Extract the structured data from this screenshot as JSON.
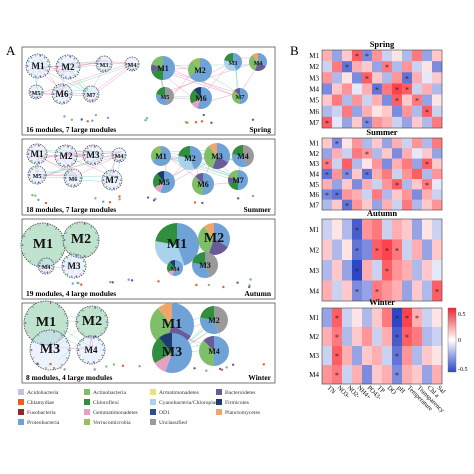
{
  "panels": {
    "a": "A",
    "b": "B"
  },
  "colors": {
    "Acidobacteria": "#c9bfe0",
    "Actinobacteria": "#7fbf6a",
    "Armatimonadetes": "#e8e27a",
    "Bacteroidetes": "#6a5a9a",
    "Chlamydiae": "#e4602a",
    "Chloroflexi": "#2f8f3f",
    "Cyanobacteria/Chloroplast": "#a9d2ec",
    "Firmicutes": "#1f3b6e",
    "Fusobacteria": "#8b2a2a",
    "Gemmatimonadetes": "#e6a0c4",
    "OD1": "#2c4d8e",
    "Planctomycetes": "#f0a66a",
    "Proteobacteria": "#6fa2d6",
    "Verrucomicrobia": "#9bbd5a",
    "Unclassified": "#9a9a9a",
    "edge_pos": "#e85a9a",
    "edge_neg": "#4fbf9f"
  },
  "networks": [
    {
      "caption": "16 modules, 7 large modules",
      "season": "Spring",
      "modules": [
        "M1",
        "M2",
        "M3",
        "M4",
        "M5",
        "M6",
        "M7"
      ]
    },
    {
      "caption": "18 modules, 7 large modules",
      "season": "Summer",
      "modules": [
        "M1",
        "M2",
        "M3",
        "M4",
        "M5",
        "M6",
        "M7"
      ]
    },
    {
      "caption": "19 modules, 4 large modules",
      "season": "Autumn",
      "modules": [
        "M1",
        "M2",
        "M3",
        "M4"
      ]
    },
    {
      "caption": "8 modules, 4 large modules",
      "season": "Winter",
      "modules": [
        "M1",
        "M2",
        "M3",
        "M4"
      ]
    }
  ],
  "legend": [
    "Acidobacteria",
    "Actinobacteria",
    "Armatimonadetes",
    "Bacteroidetes",
    "Chlamydiae",
    "Chloroflexi",
    "Cyanobacteria/Chloroplast",
    "Firmicutes",
    "Fusobacteria",
    "Gemmatimonadetes",
    "OD1",
    "Planctomycetes",
    "Proteobacteria",
    "Verrucomicrobia",
    "Unclassified"
  ],
  "heatmap": {
    "x_labels": [
      "TN",
      "NO3-",
      "NO2-",
      "NH4+",
      "PO43-",
      "TP",
      "DO",
      "pH",
      "Temperature",
      "Transparency",
      "Chl a",
      "Sal"
    ],
    "colorbar": {
      "max_label": "0.5",
      "zero_label": "0",
      "min_label": "-0.5"
    },
    "seasons": [
      {
        "name": "Spring",
        "rows": [
          "M1",
          "M2",
          "M3",
          "M4",
          "M5",
          "M6",
          "M7"
        ],
        "values": [
          [
            0.3,
            -0.4,
            0.2,
            0.6,
            -0.5,
            0.4,
            -0.2,
            0.1,
            -0.3,
            0.5,
            -0.4,
            0.2
          ],
          [
            -0.2,
            0.5,
            -0.6,
            0.3,
            0.2,
            -0.4,
            0.5,
            -0.3,
            0.4,
            -0.2,
            0.1,
            -0.5
          ],
          [
            0.4,
            -0.3,
            0.1,
            -0.5,
            0.6,
            0.2,
            -0.3,
            0.4,
            -0.6,
            0.3,
            -0.1,
            0.2
          ],
          [
            -0.5,
            0.2,
            0.4,
            -0.1,
            0.3,
            -0.6,
            0.5,
            0.7,
            0.6,
            -0.2,
            0.3,
            -0.3
          ],
          [
            0.2,
            0.5,
            -0.3,
            0.4,
            -0.2,
            0.3,
            -0.5,
            0.6,
            0.2,
            0.5,
            -0.4,
            0.1
          ],
          [
            -0.3,
            -0.2,
            0.5,
            -0.4,
            0.3,
            0.1,
            0.2,
            -0.5,
            0.4,
            -0.3,
            0.6,
            -0.2
          ],
          [
            0.6,
            -0.1,
            -0.4,
            0.2,
            -0.5,
            0.4,
            0.3,
            -0.2,
            -0.4,
            0.2,
            -0.3,
            0.5
          ]
        ],
        "stars": [
          [
            0,
            3
          ],
          [
            0,
            4
          ],
          [
            1,
            2
          ],
          [
            1,
            6
          ],
          [
            2,
            4
          ],
          [
            2,
            8
          ],
          [
            3,
            5
          ],
          [
            3,
            7
          ],
          [
            3,
            8
          ],
          [
            4,
            7
          ],
          [
            4,
            9
          ],
          [
            5,
            10
          ],
          [
            6,
            0
          ],
          [
            6,
            4
          ]
        ]
      },
      {
        "name": "Summer",
        "rows": [
          "M1",
          "M2",
          "M3",
          "M4",
          "M5",
          "M6",
          "M7"
        ],
        "values": [
          [
            0.2,
            -0.5,
            0.1,
            0.4,
            -0.3,
            0.2,
            -0.4,
            0.3,
            -0.2,
            0.4,
            -0.3,
            0.5
          ],
          [
            -0.4,
            0.3,
            -0.2,
            0.5,
            0.4,
            -0.3,
            0.2,
            -0.5,
            0.3,
            -0.1,
            0.2,
            -0.4
          ],
          [
            0.5,
            -0.2,
            0.6,
            -0.3,
            0.1,
            0.4,
            -0.5,
            0.3,
            0.5,
            -0.4,
            0.6,
            0.2
          ],
          [
            -0.6,
            0.4,
            -0.5,
            0.2,
            -0.6,
            0.3,
            0.5,
            -0.2,
            0.4,
            0.6,
            -0.3,
            0.4
          ],
          [
            0.3,
            -0.4,
            0.2,
            -0.5,
            0.3,
            -0.2,
            0.4,
            0.6,
            -0.3,
            0.2,
            0.5,
            -0.1
          ],
          [
            -0.5,
            -0.6,
            0.4,
            0.3,
            -0.2,
            0.5,
            -0.3,
            0.2,
            0.4,
            -0.5,
            0.3,
            -0.2
          ],
          [
            -0.3,
            0.2,
            -0.6,
            0.4,
            0.2,
            -0.4,
            0.3,
            -0.2,
            0.5,
            -0.3,
            0.2,
            0.4
          ]
        ],
        "stars": [
          [
            0,
            1
          ],
          [
            1,
            4
          ],
          [
            2,
            0
          ],
          [
            2,
            10
          ],
          [
            3,
            0
          ],
          [
            3,
            2
          ],
          [
            3,
            4
          ],
          [
            4,
            7
          ],
          [
            4,
            10
          ],
          [
            5,
            0
          ],
          [
            5,
            1
          ],
          [
            6,
            2
          ]
        ]
      },
      {
        "name": "Autumn",
        "rows": [
          "M1",
          "M2",
          "M3",
          "M4"
        ],
        "values": [
          [
            -0.2,
            0.1,
            -0.3,
            -0.7,
            0.4,
            0.5,
            -0.2,
            0.3,
            0.2,
            -0.4,
            0.1,
            -0.2
          ],
          [
            0.2,
            -0.3,
            0.1,
            -0.6,
            -0.5,
            0.6,
            0.7,
            0.5,
            -0.2,
            0.3,
            -0.4,
            0.2
          ],
          [
            -0.3,
            0.2,
            -0.4,
            -0.8,
            0.3,
            -0.2,
            0.6,
            0.4,
            0.3,
            -0.3,
            0.2,
            -0.1
          ],
          [
            0.3,
            -0.2,
            0.2,
            -0.5,
            -0.4,
            0.5,
            0.4,
            0.3,
            -0.4,
            0.2,
            -0.3,
            0.6
          ]
        ],
        "stars": [
          [
            0,
            3
          ],
          [
            1,
            3
          ],
          [
            1,
            5
          ],
          [
            1,
            6
          ],
          [
            1,
            7
          ],
          [
            2,
            3
          ],
          [
            2,
            6
          ],
          [
            3,
            3
          ],
          [
            3,
            5
          ],
          [
            3,
            11
          ]
        ]
      },
      {
        "name": "Winter",
        "rows": [
          "M1",
          "M2",
          "M3",
          "M4"
        ],
        "values": [
          [
            -0.4,
            0.6,
            -0.2,
            0.1,
            -0.3,
            0.2,
            0.5,
            -0.8,
            0.7,
            0.3,
            -0.2,
            0.1
          ],
          [
            0.3,
            0.5,
            -0.3,
            0.2,
            0.4,
            -0.2,
            0.3,
            -0.7,
            0.6,
            0.5,
            -0.3,
            -0.2
          ],
          [
            -0.2,
            0.6,
            0.3,
            -0.4,
            0.2,
            0.3,
            -0.2,
            -0.6,
            0.4,
            -0.3,
            0.2,
            0.1
          ],
          [
            0.4,
            0.5,
            -0.2,
            0.3,
            -0.5,
            0.2,
            0.3,
            -0.5,
            0.3,
            0.2,
            -0.4,
            0.3
          ]
        ],
        "stars": [
          [
            0,
            1
          ],
          [
            0,
            7
          ],
          [
            0,
            8
          ],
          [
            0,
            9
          ],
          [
            1,
            1
          ],
          [
            1,
            7
          ],
          [
            1,
            8
          ],
          [
            2,
            1
          ],
          [
            2,
            7
          ],
          [
            3,
            1
          ],
          [
            3,
            7
          ]
        ]
      }
    ]
  }
}
